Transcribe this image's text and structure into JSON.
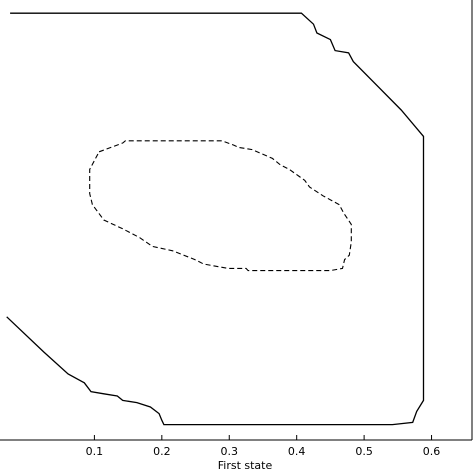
{
  "chart_data": {
    "type": "line",
    "title": "",
    "xlabel": "First state",
    "ylabel": "",
    "xlim": [
      -0.04,
      0.66
    ],
    "ylim": [
      0,
      1
    ],
    "xticks": [
      {
        "value": 0.1,
        "label": "0.1"
      },
      {
        "value": 0.2,
        "label": "0.2"
      },
      {
        "value": 0.3,
        "label": "0.3"
      },
      {
        "value": 0.4,
        "label": "0.4"
      },
      {
        "value": 0.5,
        "label": "0.5"
      },
      {
        "value": 0.6,
        "label": "0.6"
      }
    ],
    "series": [
      {
        "style": "solid",
        "x": [
          -0.025,
          0.407,
          0.425,
          0.43,
          0.45,
          0.457,
          0.477,
          0.484,
          0.555,
          0.588,
          0.588,
          0.578,
          0.572,
          0.542,
          0.203,
          0.2,
          0.196,
          0.183,
          0.163,
          0.142,
          0.134,
          0.114,
          0.095,
          0.085,
          0.061,
          0.025,
          -0.03
        ],
        "y": [
          0.97,
          0.97,
          0.945,
          0.925,
          0.91,
          0.885,
          0.88,
          0.86,
          0.75,
          0.69,
          0.09,
          0.065,
          0.04,
          0.035,
          0.035,
          0.045,
          0.06,
          0.075,
          0.085,
          0.09,
          0.1,
          0.105,
          0.11,
          0.13,
          0.15,
          0.2,
          0.28
        ],
        "closed": false
      },
      {
        "style": "dashed",
        "x": [
          0.107,
          0.142,
          0.146,
          0.289,
          0.307,
          0.314,
          0.334,
          0.364,
          0.376,
          0.389,
          0.412,
          0.419,
          0.439,
          0.463,
          0.47,
          0.481,
          0.481,
          0.478,
          0.471,
          0.468,
          0.45,
          0.328,
          0.325,
          0.298,
          0.262,
          0.249,
          0.216,
          0.186,
          0.167,
          0.142,
          0.114,
          0.097,
          0.093,
          0.093
        ],
        "y": [
          0.655,
          0.675,
          0.68,
          0.68,
          0.67,
          0.665,
          0.66,
          0.64,
          0.625,
          0.615,
          0.59,
          0.575,
          0.555,
          0.535,
          0.515,
          0.49,
          0.45,
          0.42,
          0.41,
          0.39,
          0.385,
          0.385,
          0.39,
          0.39,
          0.4,
          0.41,
          0.43,
          0.44,
          0.46,
          0.48,
          0.5,
          0.535,
          0.56,
          0.615
        ],
        "closed": true
      }
    ]
  }
}
